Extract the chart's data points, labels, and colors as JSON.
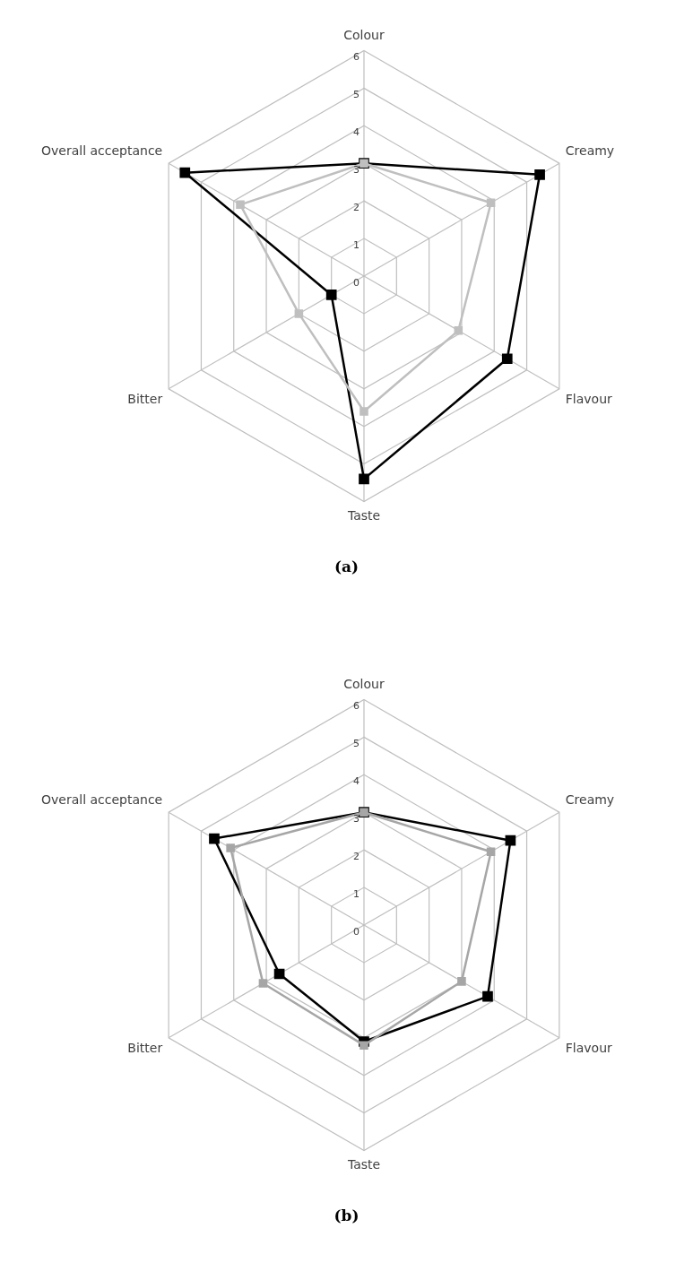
{
  "chart_data": [
    {
      "type": "radar",
      "categories": [
        "Colour",
        "Creamy",
        "Flavour",
        "Taste",
        "Bitter",
        "Overall acceptance"
      ],
      "ylim": [
        0,
        6
      ],
      "yticks": [
        0,
        1,
        2,
        3,
        4,
        5,
        6
      ],
      "grid": true,
      "legend": false,
      "marker": "square",
      "line_style": "solid",
      "annotations": [
        "(a)"
      ],
      "series": [
        {
          "color": "#bfbfbf",
          "values": [
            3,
            3.9,
            2.9,
            3.6,
            2,
            3.8
          ]
        },
        {
          "color": "#000000",
          "values": [
            3,
            5.4,
            4.4,
            5.4,
            1,
            5.5
          ]
        }
      ]
    },
    {
      "type": "radar",
      "categories": [
        "Colour",
        "Creamy",
        "Flavour",
        "Taste",
        "Bitter",
        "Overall acceptance"
      ],
      "ylim": [
        0,
        6
      ],
      "yticks": [
        0,
        1,
        2,
        3,
        4,
        5,
        6
      ],
      "grid": true,
      "legend": false,
      "marker": "square",
      "line_style": "solid",
      "annotations": [
        "(b)"
      ],
      "series": [
        {
          "color": "#a6a6a6",
          "values": [
            3,
            3.9,
            3,
            3.2,
            3.1,
            4.1
          ]
        },
        {
          "color": "#000000",
          "values": [
            3,
            4.5,
            3.8,
            3.1,
            2.6,
            4.6
          ]
        }
      ]
    }
  ]
}
